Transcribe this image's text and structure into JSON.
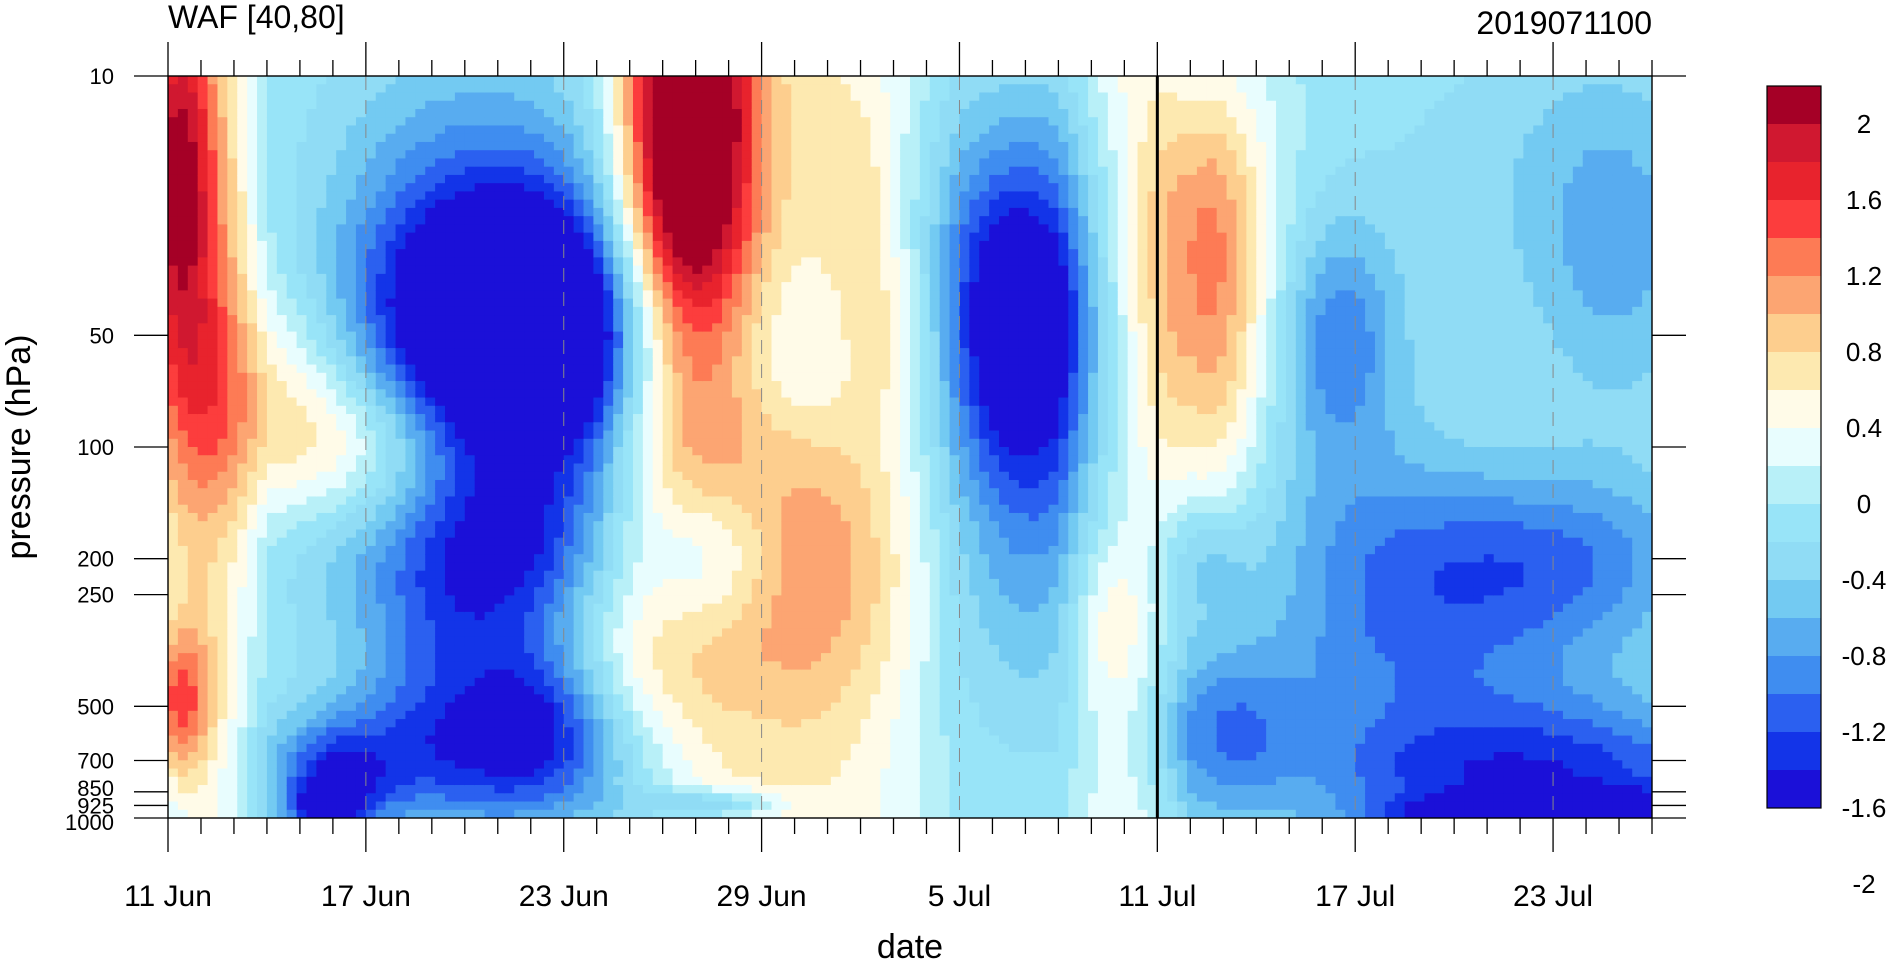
{
  "chart_data": {
    "type": "heatmap",
    "title_left": "WAF [40,80]",
    "title_right": "2019071100",
    "xlabel": "date",
    "ylabel": "pressure (hPa)",
    "x_start": "11 Jun 2019",
    "x_range_days": [
      0,
      45
    ],
    "x_ticks": [
      {
        "day": 0,
        "label": "11 Jun"
      },
      {
        "day": 6,
        "label": "17 Jun"
      },
      {
        "day": 12,
        "label": "23 Jun"
      },
      {
        "day": 18,
        "label": "29 Jun"
      },
      {
        "day": 24,
        "label": "5 Jul"
      },
      {
        "day": 30,
        "label": "11 Jul"
      },
      {
        "day": 36,
        "label": "17 Jul"
      },
      {
        "day": 42,
        "label": "23 Jul"
      }
    ],
    "y_scale": "log",
    "y_range": [
      1000,
      10
    ],
    "y_ticks": [
      {
        "p": 10,
        "label": "10"
      },
      {
        "p": 50,
        "label": "50"
      },
      {
        "p": 100,
        "label": "100"
      },
      {
        "p": 200,
        "label": "200"
      },
      {
        "p": 250,
        "label": "250"
      },
      {
        "p": 500,
        "label": "500"
      },
      {
        "p": 700,
        "label": "700"
      },
      {
        "p": 850,
        "label": "850"
      },
      {
        "p": 925,
        "label": "925"
      },
      {
        "p": 1000,
        "label": "1000"
      }
    ],
    "vertical_line_day": 30,
    "colorbar": {
      "colors": [
        "#a50026",
        "#d01830",
        "#e8232d",
        "#fc3d3d",
        "#fd7b55",
        "#fca572",
        "#fdce8e",
        "#fde9b0",
        "#fffbe8",
        "#e8fdfe",
        "#b8f0f8",
        "#98e4f8",
        "#90dcf5",
        "#73caf2",
        "#58acf0",
        "#3f8df0",
        "#2b60f0",
        "#1334e8",
        "#1b10d8"
      ],
      "labels": [
        "2",
        "1.6",
        "1.2",
        "0.8",
        "0.4",
        "0",
        "-0.4",
        "-0.8",
        "-1.2",
        "-1.6",
        "-2"
      ],
      "levels": [
        2.2,
        2,
        1.8,
        1.6,
        1.4,
        1.2,
        1,
        0.8,
        0.6,
        0.4,
        0.2,
        0,
        -0.2,
        -0.4,
        -0.6,
        -0.8,
        -1,
        -1.2,
        -1.4,
        -1.6,
        -1.8,
        -2,
        -2.2
      ]
    },
    "features": [
      {
        "day": 0.3,
        "p": 50,
        "value": 1.2,
        "sx": 1.5,
        "sy": 1.2
      },
      {
        "day": 0.2,
        "p": 15,
        "value": 1.6,
        "sx": 0.8,
        "sy": 0.8
      },
      {
        "day": 0.3,
        "p": 500,
        "value": 1.4,
        "sx": 0.7,
        "sy": 0.35
      },
      {
        "day": 5,
        "p": 100,
        "value": 0.8,
        "sx": 2.2,
        "sy": 0.35
      },
      {
        "day": 3,
        "p": 60,
        "value": 0.5,
        "sx": 2,
        "sy": 0.4
      },
      {
        "day": 8,
        "p": 25,
        "value": -0.5,
        "sx": 3,
        "sy": 1
      },
      {
        "day": 9,
        "p": 40,
        "value": -0.6,
        "sx": 2.5,
        "sy": 0.6
      },
      {
        "day": 9,
        "p": 200,
        "value": -0.7,
        "sx": 1.5,
        "sy": 0.5
      },
      {
        "day": 8.5,
        "p": 500,
        "value": -0.9,
        "sx": 2.2,
        "sy": 0.5
      },
      {
        "day": 5,
        "p": 800,
        "value": -1.2,
        "sx": 1.3,
        "sy": 0.25
      },
      {
        "day": 4.8,
        "p": 950,
        "value": -1.5,
        "sx": 0.6,
        "sy": 0.1
      },
      {
        "day": 9,
        "p": 700,
        "value": -0.6,
        "sx": 4,
        "sy": 0.3
      },
      {
        "day": 7,
        "p": 200,
        "value": -0.6,
        "sx": 2.5,
        "sy": 0.4
      },
      {
        "day": 11.5,
        "p": 50,
        "value": -2.3,
        "sx": 3.2,
        "sy": 0.5
      },
      {
        "day": 12,
        "p": 110,
        "value": -0.7,
        "sx": 2,
        "sy": 0.5
      },
      {
        "day": 11.5,
        "p": 22,
        "value": -0.6,
        "sx": 3,
        "sy": 0.6
      },
      {
        "day": 11.3,
        "p": 200,
        "value": -0.8,
        "sx": 1.5,
        "sy": 0.4
      },
      {
        "day": 11.3,
        "p": 500,
        "value": -0.8,
        "sx": 1.3,
        "sy": 0.35
      },
      {
        "day": 12.2,
        "p": 700,
        "value": -0.5,
        "sx": 2.5,
        "sy": 0.4
      },
      {
        "day": 15.8,
        "p": 10,
        "value": 2.4,
        "sx": 1.3,
        "sy": 0.9
      },
      {
        "day": 15.5,
        "p": 30,
        "value": 1.5,
        "sx": 1.6,
        "sy": 0.8
      },
      {
        "day": 15,
        "p": 80,
        "value": 0.6,
        "sx": 2,
        "sy": 0.6
      },
      {
        "day": 14.5,
        "p": 400,
        "value": 0.5,
        "sx": 3,
        "sy": 0.6
      },
      {
        "day": 16.5,
        "p": 200,
        "value": -0.8,
        "sx": 1.5,
        "sy": 0.35
      },
      {
        "day": 16.5,
        "p": 920,
        "value": -0.9,
        "sx": 1.6,
        "sy": 0.07
      },
      {
        "day": 20,
        "p": 200,
        "value": 0.7,
        "sx": 3,
        "sy": 0.7
      },
      {
        "day": 19,
        "p": 60,
        "value": -0.3,
        "sx": 1.5,
        "sy": 0.4
      },
      {
        "day": 18,
        "p": 500,
        "value": -0.1,
        "sx": 1.2,
        "sy": 0.25
      },
      {
        "day": 21.8,
        "p": 50,
        "value": 0.5,
        "sx": 1,
        "sy": 0.4
      },
      {
        "day": 21,
        "p": 20,
        "value": 0.4,
        "sx": 1,
        "sy": 0.5
      },
      {
        "day": 26,
        "p": 50,
        "value": -1.6,
        "sx": 1.6,
        "sy": 0.7
      },
      {
        "day": 26,
        "p": 200,
        "value": -0.7,
        "sx": 2.5,
        "sy": 0.8
      },
      {
        "day": 25.5,
        "p": 30,
        "value": -0.7,
        "sx": 2.2,
        "sy": 0.8
      },
      {
        "day": 28,
        "p": 15,
        "value": -0.1,
        "sx": 1,
        "sy": 0.3
      },
      {
        "day": 28.5,
        "p": 300,
        "value": 0.5,
        "sx": 0.9,
        "sy": 0.4
      },
      {
        "day": 31.5,
        "p": 50,
        "value": 1.2,
        "sx": 1.4,
        "sy": 0.9
      },
      {
        "day": 31.5,
        "p": 20,
        "value": 0.6,
        "sx": 1.4,
        "sy": 0.6
      },
      {
        "day": 31.5,
        "p": 200,
        "value": -0.5,
        "sx": 1,
        "sy": 0.25
      },
      {
        "day": 32,
        "p": 600,
        "value": -0.9,
        "sx": 1.6,
        "sy": 0.4
      },
      {
        "day": 33.5,
        "p": 250,
        "value": 0.1,
        "sx": 1.6,
        "sy": 0.35
      },
      {
        "day": 35.5,
        "p": 50,
        "value": -0.9,
        "sx": 1.3,
        "sy": 0.5
      },
      {
        "day": 36,
        "p": 200,
        "value": -0.6,
        "sx": 3,
        "sy": 0.8
      },
      {
        "day": 39,
        "p": 400,
        "value": -0.6,
        "sx": 4,
        "sy": 0.6
      },
      {
        "day": 40,
        "p": 45,
        "value": 0.05,
        "sx": 3,
        "sy": 0.5
      },
      {
        "day": 41,
        "p": 20,
        "value": -0.3,
        "sx": 4,
        "sy": 0.8
      },
      {
        "day": 42,
        "p": 200,
        "value": -0.9,
        "sx": 3.5,
        "sy": 0.4
      },
      {
        "day": 42.5,
        "p": 800,
        "value": -1.3,
        "sx": 4.5,
        "sy": 0.35
      },
      {
        "day": 43,
        "p": 970,
        "value": -1.9,
        "sx": 3.5,
        "sy": 0.08
      },
      {
        "day": 37,
        "p": 750,
        "value": -0.2,
        "sx": 2,
        "sy": 0.2
      },
      {
        "day": 44,
        "p": 30,
        "value": -0.6,
        "sx": 2,
        "sy": 0.8
      }
    ],
    "background": -0.35,
    "background_regions": [
      {
        "day0": 0,
        "day1": 3,
        "value": 0.1
      },
      {
        "day0": 13,
        "day1": 24,
        "value": 0.3
      },
      {
        "day0": 27,
        "day1": 31,
        "value": 0.15
      }
    ]
  }
}
